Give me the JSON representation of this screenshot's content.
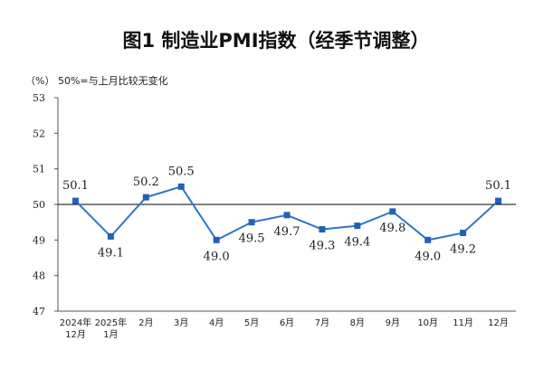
{
  "chart_data": {
    "type": "line",
    "title": "图1  制造业PMI指数（经季节调整）",
    "unit_note": "（%）  50%=与上月比较无变化",
    "categories": [
      [
        "2024年",
        "12月"
      ],
      [
        "2025年",
        "1月"
      ],
      [
        "2月"
      ],
      [
        "3月"
      ],
      [
        "4月"
      ],
      [
        "5月"
      ],
      [
        "6月"
      ],
      [
        "7月"
      ],
      [
        "8月"
      ],
      [
        "9月"
      ],
      [
        "10月"
      ],
      [
        "11月"
      ],
      [
        "12月"
      ]
    ],
    "series": [
      {
        "values": [
          50.1,
          49.1,
          50.2,
          50.5,
          49.0,
          49.5,
          49.7,
          49.3,
          49.4,
          49.8,
          49.0,
          49.2,
          50.1
        ],
        "labels": [
          "50.1",
          "49.1",
          "50.2",
          "50.5",
          "49.0",
          "49.5",
          "49.7",
          "49.3",
          "49.4",
          "49.8",
          "49.0",
          "49.2",
          "50.1"
        ],
        "label_position": [
          "above",
          "below",
          "above",
          "above",
          "below",
          "below",
          "below",
          "below",
          "below",
          "below",
          "below",
          "below",
          "above"
        ]
      }
    ],
    "ylim": [
      47,
      53
    ],
    "yticks": [
      "47",
      "48",
      "49",
      "50",
      "51",
      "52",
      "53"
    ],
    "reference_line": 50,
    "grid": false,
    "legend": "none",
    "colors": {
      "line": "#2e75c5",
      "marker": "#1f62b8",
      "axis": "#555555",
      "reference": "#000000",
      "text": "#222222"
    }
  }
}
